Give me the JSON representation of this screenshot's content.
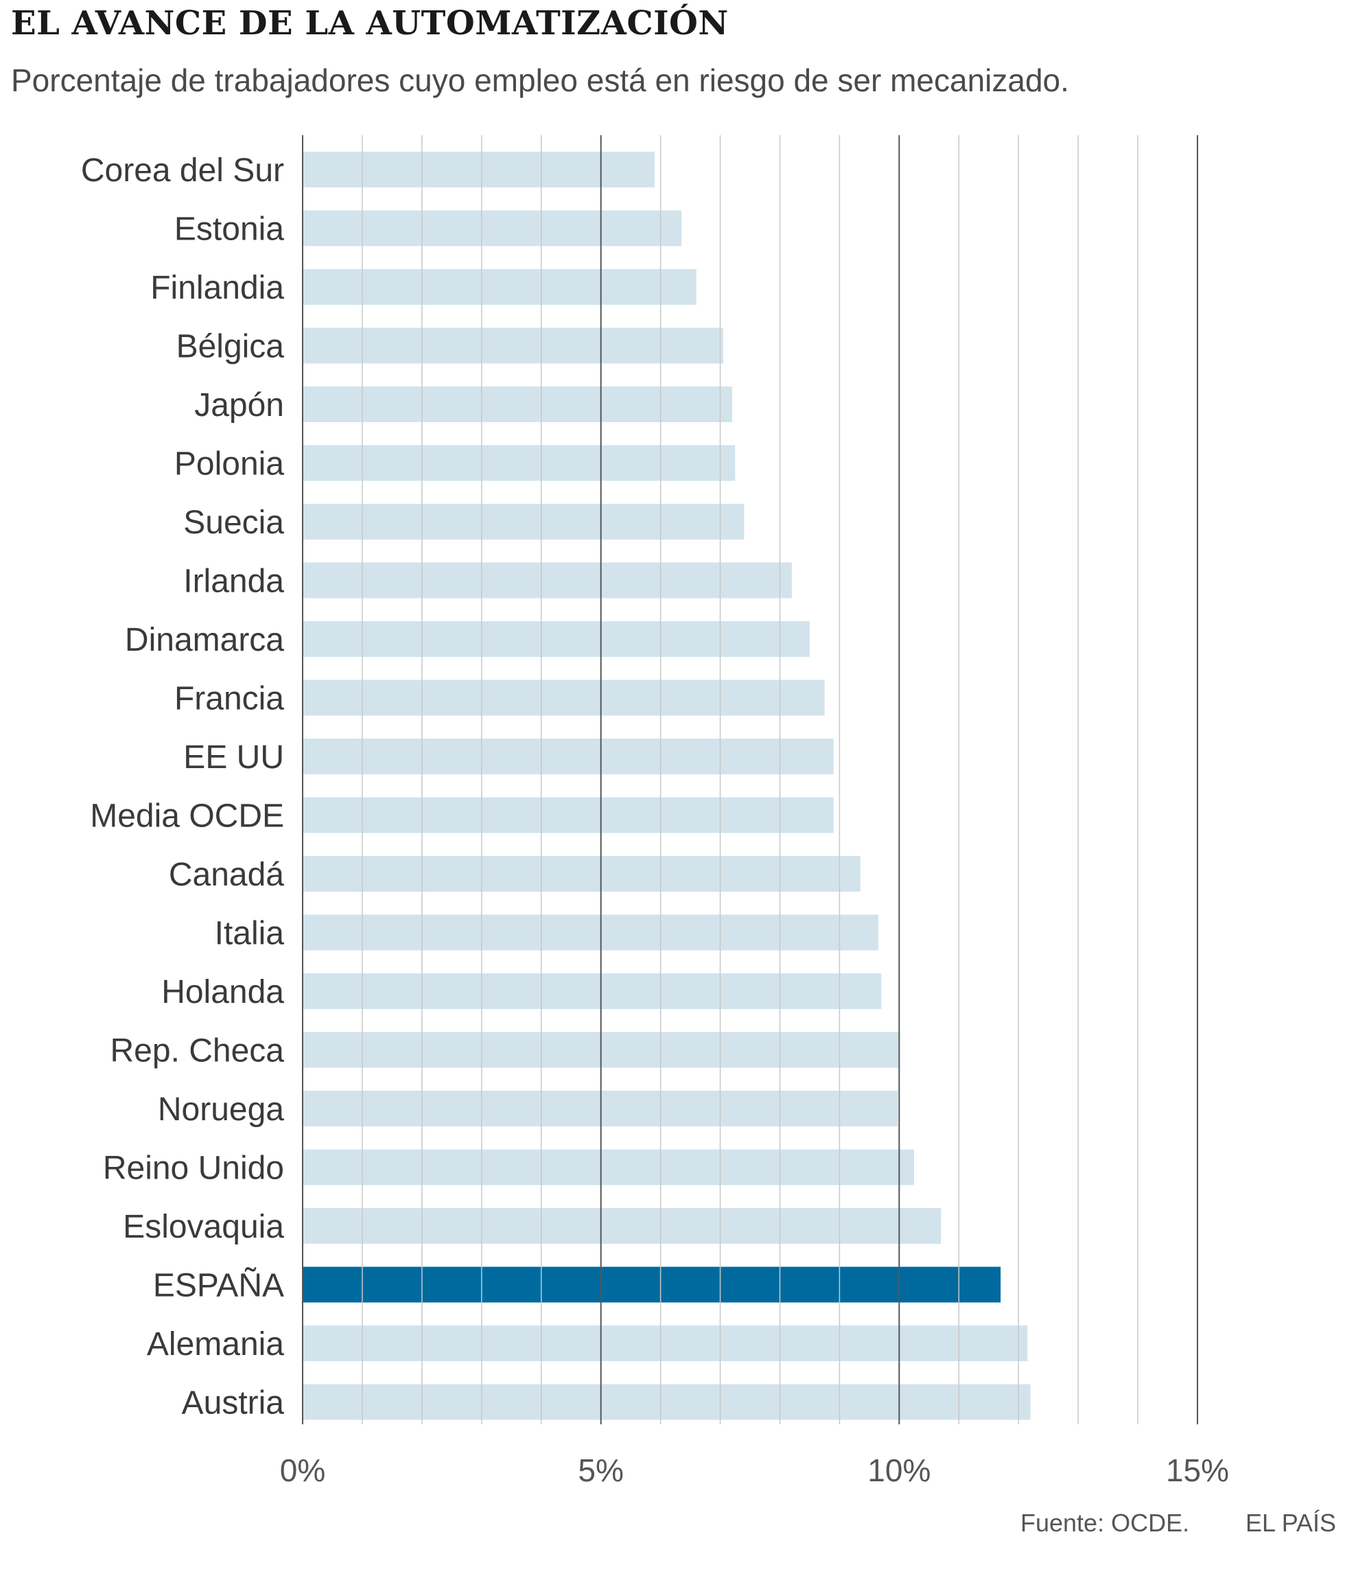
{
  "header": {
    "title": "EL AVANCE DE LA AUTOMATIZACIÓN",
    "subtitle": "Porcentaje de trabajadores cuyo empleo está en riesgo de ser mecanizado."
  },
  "footer": {
    "source": "Fuente: OCDE.",
    "brand": "EL PAÍS"
  },
  "chart_data": {
    "type": "bar",
    "orientation": "horizontal",
    "categories": [
      "Corea del Sur",
      "Estonia",
      "Finlandia",
      "Bélgica",
      "Japón",
      "Polonia",
      "Suecia",
      "Irlanda",
      "Dinamarca",
      "Francia",
      "EE UU",
      "Media OCDE",
      "Canadá",
      "Italia",
      "Holanda",
      "Rep. Checa",
      "Noruega",
      "Reino Unido",
      "Eslovaquia",
      "ESPAÑA",
      "Alemania",
      "Austria"
    ],
    "values": [
      5.9,
      6.35,
      6.6,
      7.05,
      7.2,
      7.25,
      7.4,
      8.2,
      8.5,
      8.75,
      8.9,
      8.9,
      9.35,
      9.65,
      9.7,
      10.0,
      9.98,
      10.25,
      10.7,
      11.7,
      12.15,
      12.2
    ],
    "highlight": "ESPAÑA",
    "xlim": [
      0,
      15
    ],
    "xticks": [
      {
        "value": 0,
        "label": "0%"
      },
      {
        "value": 5,
        "label": "5%"
      },
      {
        "value": 10,
        "label": "10%"
      },
      {
        "value": 15,
        "label": "15%"
      }
    ],
    "minor_gridlines_every": 1,
    "grid": true,
    "xlabel": "",
    "ylabel": "",
    "colors": {
      "bar": "#d2e3ec",
      "highlight": "#006a9f",
      "major_grid": "#555555",
      "minor_grid": "#c8c8c8",
      "label": "#3a3a3a",
      "tick": "#555555"
    }
  }
}
